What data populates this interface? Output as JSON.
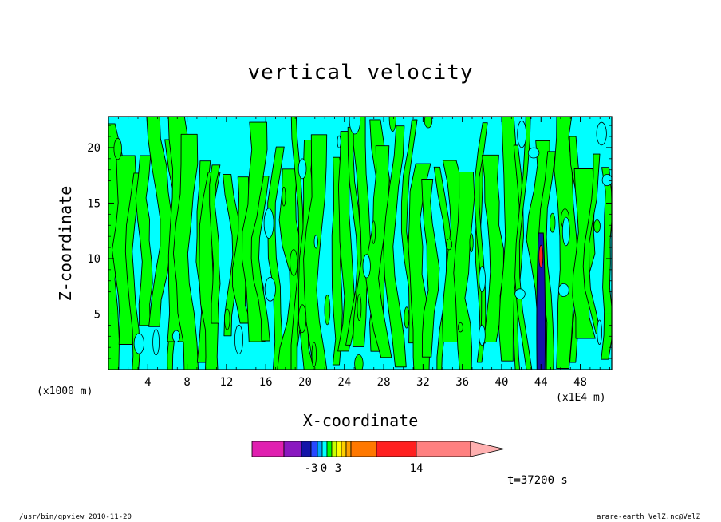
{
  "chart_data": {
    "type": "heatmap",
    "title": "vertical velocity",
    "xlabel": "X-coordinate",
    "ylabel": "Z-coordinate",
    "x_unit_label": "(x1000 m)",
    "x_scale_label": "(x1E4 m)",
    "x_ticks": [
      4,
      8,
      12,
      16,
      20,
      24,
      28,
      32,
      36,
      40,
      44,
      48
    ],
    "y_ticks": [
      5,
      10,
      15,
      20
    ],
    "xlim": [
      0,
      51.2
    ],
    "ylim": [
      0,
      22.8
    ],
    "colorbar": {
      "segments": [
        "#e020b0",
        "#8a18c0",
        "#1414a8",
        "#2848ff",
        "#00a8ff",
        "#00ffff",
        "#00ff00",
        "#c8ff00",
        "#ffff00",
        "#ffd000",
        "#ffa000",
        "#ff7800",
        "#ff2020",
        "#ff8080",
        "#ffb0b0"
      ],
      "tick_labels": [
        "-3",
        "0",
        "3",
        "14"
      ]
    },
    "field_colors": {
      "low": "#00ffff",
      "high": "#00ff00",
      "contour": "#000000",
      "peak": "#ff2020"
    },
    "time_label": "t=37200 s"
  },
  "footer": {
    "left": "/usr/bin/gpview   2010-11-20",
    "right": "arare-earth_VelZ.nc@VelZ"
  }
}
